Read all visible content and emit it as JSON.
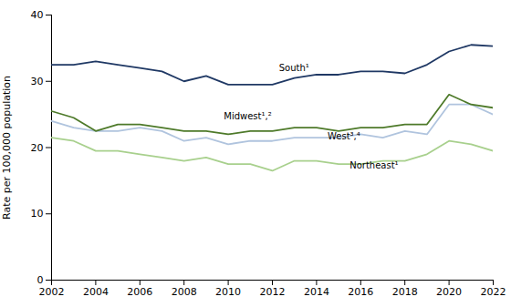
{
  "chart_data": {
    "type": "line",
    "x": [
      2002,
      2003,
      2004,
      2005,
      2006,
      2007,
      2008,
      2009,
      2010,
      2011,
      2012,
      2013,
      2014,
      2015,
      2016,
      2017,
      2018,
      2019,
      2020,
      2021,
      2022
    ],
    "series": [
      {
        "name": "South¹",
        "color": "#1f3864",
        "values": [
          32.5,
          32.5,
          33.0,
          32.5,
          32.0,
          31.5,
          30.0,
          30.8,
          29.5,
          29.5,
          29.5,
          30.5,
          31.0,
          31.0,
          31.5,
          31.5,
          31.2,
          32.5,
          34.5,
          35.5,
          35.3
        ]
      },
      {
        "name": "Midwest¹,²",
        "color": "#4e7a2a",
        "values": [
          25.5,
          24.5,
          22.5,
          23.5,
          23.5,
          23.0,
          22.5,
          22.5,
          22.0,
          22.5,
          22.5,
          23.0,
          23.0,
          22.5,
          23.0,
          23.0,
          23.5,
          23.5,
          28.0,
          26.5,
          26.0
        ]
      },
      {
        "name": "West³,⁴",
        "color": "#b0c4de",
        "values": [
          24.0,
          23.0,
          22.5,
          22.5,
          23.0,
          22.5,
          21.0,
          21.5,
          20.5,
          21.0,
          21.0,
          21.5,
          21.5,
          21.5,
          22.0,
          21.5,
          22.5,
          22.0,
          26.5,
          26.5,
          25.0
        ]
      },
      {
        "name": "Northeast¹",
        "color": "#a8d08d",
        "values": [
          21.5,
          21.0,
          19.5,
          19.5,
          19.0,
          18.5,
          18.0,
          18.5,
          17.5,
          17.5,
          16.5,
          18.0,
          18.0,
          17.5,
          17.5,
          18.0,
          18.0,
          19.0,
          21.0,
          20.5,
          19.5
        ]
      }
    ],
    "annotations": [
      {
        "text": "South¹",
        "x": 2012.3,
        "y": 31.5
      },
      {
        "text": "Midwest¹,²",
        "x": 2009.8,
        "y": 24.2
      },
      {
        "text": "West³,⁴",
        "x": 2014.5,
        "y": 21.2
      },
      {
        "text": "Northeast¹",
        "x": 2015.5,
        "y": 16.8
      }
    ],
    "ylabel": "Rate per 100,000 population",
    "xlim": [
      2002,
      2022
    ],
    "xticks": [
      2002,
      2004,
      2006,
      2008,
      2010,
      2012,
      2014,
      2016,
      2018,
      2020,
      2022
    ],
    "ylim": [
      0,
      40
    ],
    "yticks": [
      0,
      10,
      20,
      30,
      40
    ],
    "grid": false
  }
}
